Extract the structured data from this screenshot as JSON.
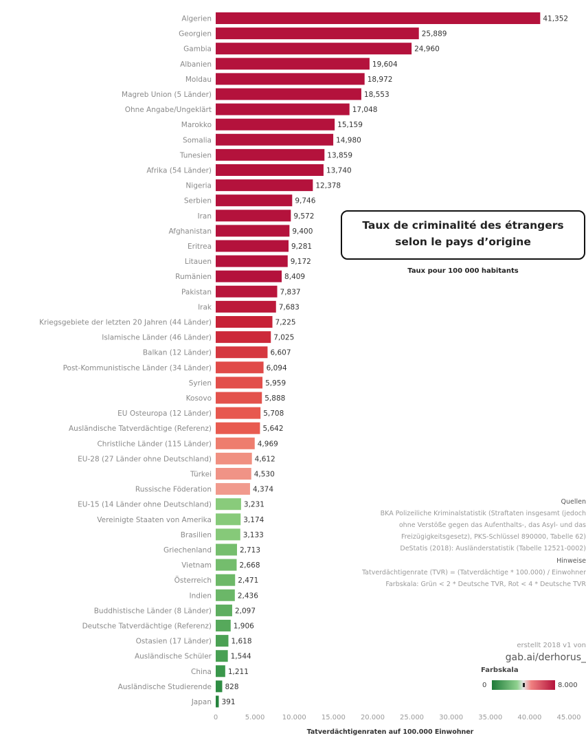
{
  "chart_data": {
    "type": "bar",
    "orientation": "horizontal",
    "xlabel": "Tatverdächtigenraten auf 100.000 Einwohner",
    "xlim": [
      0,
      45000
    ],
    "x_ticks": [
      "0",
      "5.000",
      "10.000",
      "15.000",
      "20.000",
      "25.000",
      "30.000",
      "35.000",
      "40.000",
      "45.000"
    ],
    "grid": false,
    "colors": {
      "high": "#b4123c",
      "low": "#1e7a38"
    },
    "categories": [
      "Algerien",
      "Georgien",
      "Gambia",
      "Albanien",
      "Moldau",
      "Magreb Union (5 Länder)",
      "Ohne Angabe/Ungeklärt",
      "Marokko",
      "Somalia",
      "Tunesien",
      "Afrika (54 Länder)",
      "Nigeria",
      "Serbien",
      "Iran",
      "Afghanistan",
      "Eritrea",
      "Litauen",
      "Rumänien",
      "Pakistan",
      "Irak",
      "Kriegsgebiete der letzten 20 Jahren (44 Länder)",
      "Islamische Länder (46 Länder)",
      "Balkan (12 Länder)",
      "Post-Kommunistische Länder (34 Länder)",
      "Syrien",
      "Kosovo",
      "EU Osteuropa (12 Länder)",
      "Ausländische Tatverdächtige (Referenz)",
      "Christliche Länder (115 Länder)",
      "EU-28 (27 Länder ohne Deutschland)",
      "Türkei",
      "Russische Föderation",
      "EU-15 (14 Länder ohne Deutschland)",
      "Vereinigte Staaten von Amerika",
      "Brasilien",
      "Griechenland",
      "Vietnam",
      "Österreich",
      "Indien",
      "Buddhistische Länder (8 Länder)",
      "Deutsche Tatverdächtige (Referenz)",
      "Ostasien (17 Länder)",
      "Ausländische Schüler",
      "China",
      "Ausländische Studierende",
      "Japan"
    ],
    "values": [
      41352,
      25889,
      24960,
      19604,
      18972,
      18553,
      17048,
      15159,
      14980,
      13859,
      13740,
      12378,
      9746,
      9572,
      9400,
      9281,
      9172,
      8409,
      7837,
      7683,
      7225,
      7025,
      6607,
      6094,
      5959,
      5888,
      5708,
      5642,
      4969,
      4612,
      4530,
      4374,
      3231,
      3174,
      3133,
      2713,
      2668,
      2471,
      2436,
      2097,
      1906,
      1618,
      1544,
      1211,
      828,
      391
    ],
    "value_labels": [
      "41,352",
      "25,889",
      "24,960",
      "19,604",
      "18,972",
      "18,553",
      "17,048",
      "15,159",
      "14,980",
      "13,859",
      "13,740",
      "12,378",
      "9,746",
      "9,572",
      "9,400",
      "9,281",
      "9,172",
      "8,409",
      "7,837",
      "7,683",
      "7,225",
      "7,025",
      "6,607",
      "6,094",
      "5,959",
      "5,888",
      "5,708",
      "5,642",
      "4,969",
      "4,612",
      "4,530",
      "4,374",
      "3,231",
      "3,174",
      "3,133",
      "2,713",
      "2,668",
      "2,471",
      "2,436",
      "2,097",
      "1,906",
      "1,618",
      "1,544",
      "1,211",
      "828",
      "391"
    ]
  },
  "overlay": {
    "title_line1": "Taux de criminalité des étrangers",
    "title_line2": "selon le pays d’origine",
    "subtitle": "Taux pour 100 000 habitants"
  },
  "sources": {
    "heading": "Quellen",
    "line1": "BKA Polizeiliche Kriminalstatistik (Straftaten insgesamt (jedoch",
    "line2": "ohne Verstöße gegen das Aufenthalts-, das Asyl- und das",
    "line3": "Freizügigkeitsgesetz), PKS-Schlüssel 890000, Tabelle 62)",
    "line4": "DeStatis (2018): Ausländerstatistik (Tabelle 12521-0002)"
  },
  "hints": {
    "heading": "Hinweise",
    "line1": "Tatverdächtigenrate (TVR) = (Tatverdächtige * 100.000) / Einwohner",
    "line2": "Farbskala: Grün < 2 * Deutsche TVR, Rot < 4 * Deutsche TVR"
  },
  "credit": {
    "line1": "erstellt 2018 v1 von",
    "line2": "gab.ai/derhorus_"
  },
  "legend": {
    "title": "Farbskala",
    "min": "0",
    "max": "8.000"
  }
}
